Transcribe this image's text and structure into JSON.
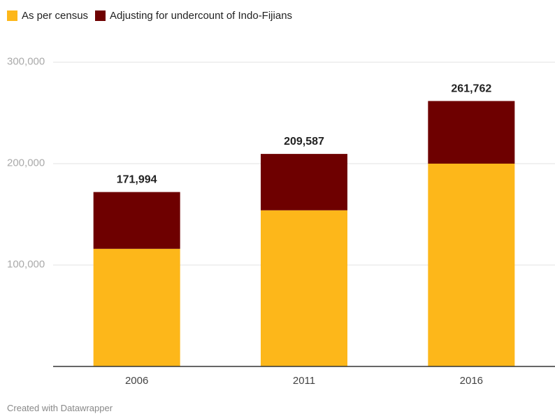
{
  "chart_data": {
    "type": "bar",
    "stacked": true,
    "categories": [
      "2006",
      "2011",
      "2016"
    ],
    "series": [
      {
        "name": "As per census",
        "color": "#fdb71a",
        "values": [
          116000,
          154000,
          200000
        ]
      },
      {
        "name": "Adjusting for undercount of Indo-Fijians",
        "color": "#6e0000",
        "values": [
          55994,
          55587,
          61762
        ]
      }
    ],
    "totals": [
      "171,994",
      "209,587",
      "261,762"
    ],
    "yticks": [
      {
        "value": 100000,
        "label": "100,000"
      },
      {
        "value": 200000,
        "label": "200,000"
      },
      {
        "value": 300000,
        "label": "300,000"
      }
    ],
    "ylim": [
      0,
      300000
    ],
    "grid": true,
    "legend_position": "top-left"
  },
  "credit": "Created with Datawrapper"
}
